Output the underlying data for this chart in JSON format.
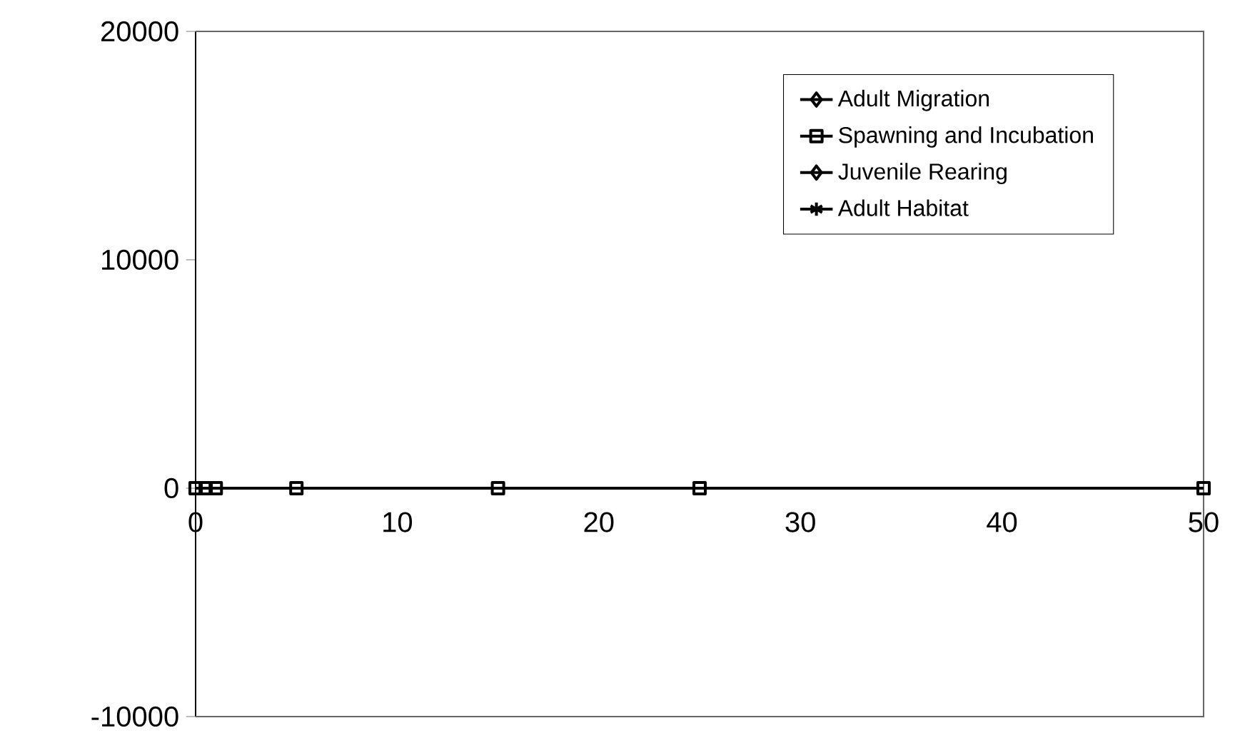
{
  "chart_data": {
    "type": "line",
    "x": [
      0,
      0.5,
      1,
      5,
      15,
      25,
      50
    ],
    "series": [
      {
        "name": "Adult Migration",
        "color": "#000000",
        "marker": "diamond",
        "values": [
          null,
          null,
          null,
          null,
          null,
          null,
          null
        ]
      },
      {
        "name": "Spawning and Incubation",
        "color": "#000000",
        "marker": "square",
        "values": [
          0,
          0,
          0,
          0,
          0,
          0,
          0
        ]
      },
      {
        "name": "Juvenile Rearing",
        "color": "#000000",
        "marker": "diamond",
        "values": [
          null,
          null,
          null,
          null,
          null,
          null,
          null
        ]
      },
      {
        "name": "Adult Habitat",
        "color": "#000000",
        "marker": "star",
        "values": [
          null,
          null,
          null,
          null,
          null,
          null,
          null
        ]
      }
    ],
    "xlim": [
      0,
      50
    ],
    "xticks": [
      0,
      10,
      20,
      30,
      40,
      50
    ],
    "ylim": [
      -10000,
      20000
    ],
    "yticks": [
      -10000,
      0,
      10000,
      20000
    ],
    "grid": false,
    "legend": "top right",
    "line_style": "solid"
  }
}
